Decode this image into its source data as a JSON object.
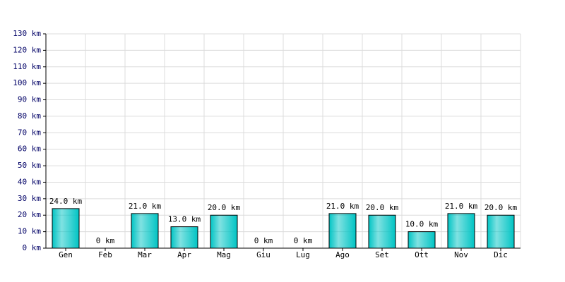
{
  "chart_data": {
    "type": "bar",
    "categories": [
      "Gen",
      "Feb",
      "Mar",
      "Apr",
      "Mag",
      "Giu",
      "Lug",
      "Ago",
      "Set",
      "Ott",
      "Nov",
      "Dic"
    ],
    "values": [
      24,
      0,
      21,
      13,
      20,
      0,
      0,
      21,
      20,
      10,
      21,
      20
    ],
    "value_labels": [
      "24.0 km",
      "0 km",
      "21.0 km",
      "13.0 km",
      "20.0 km",
      "0 km",
      "0 km",
      "21.0 km",
      "20.0 km",
      "10.0 km",
      "21.0 km",
      "20.0 km"
    ],
    "color": "#00c4c4",
    "ylim": [
      0,
      130
    ],
    "yticks": [
      {
        "value": 0,
        "label": "0 km"
      },
      {
        "value": 10,
        "label": "10 km"
      },
      {
        "value": 20,
        "label": "20 km"
      },
      {
        "value": 30,
        "label": "30 km"
      },
      {
        "value": 40,
        "label": "40 km"
      },
      {
        "value": 50,
        "label": "50 km"
      },
      {
        "value": 60,
        "label": "60 km"
      },
      {
        "value": 70,
        "label": "70 km"
      },
      {
        "value": 80,
        "label": "80 km"
      },
      {
        "value": 90,
        "label": "90 km"
      },
      {
        "value": 100,
        "label": "100 km"
      },
      {
        "value": 110,
        "label": "110 km"
      },
      {
        "value": 120,
        "label": "120 km"
      },
      {
        "value": 130,
        "label": "130 km"
      }
    ],
    "grid": true
  }
}
